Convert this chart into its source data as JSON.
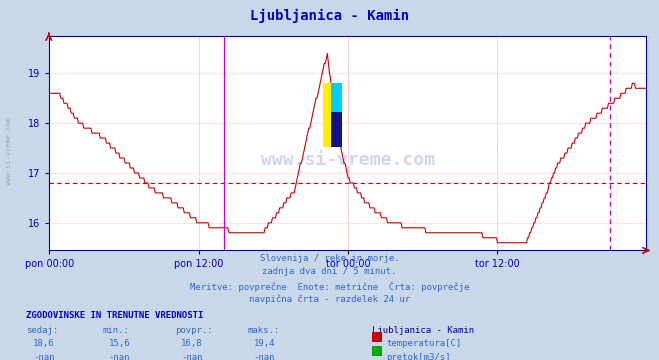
{
  "title": "Ljubljanica - Kamin",
  "title_color": "#0000cc",
  "bg_color": "#c8d8e8",
  "plot_bg_color": "#ffffff",
  "grid_color": "#ffcccc",
  "line_color": "#cc0000",
  "avg_line_color": "#cc0000",
  "avg_line_y": 16.8,
  "ylim": [
    15.45,
    19.75
  ],
  "yticks": [
    16,
    17,
    18,
    19
  ],
  "tick_color": "#0000cc",
  "xtick_labels": [
    "pon 00:00",
    "pon 12:00",
    "tor 00:00",
    "tor 12:00"
  ],
  "xtick_positions": [
    0,
    144,
    288,
    432
  ],
  "pink_vline_positions": [
    144,
    288,
    432
  ],
  "magenta_vline_pos": 168,
  "right_magenta_vline_pos": 540,
  "total_points": 576,
  "subtitle_lines": [
    "Slovenija / reke in morje.",
    "zadnja dva dni / 5 minut.",
    "Meritve: povprečne  Enote: metrične  Črta: povprečje",
    "navpična črta - razdelek 24 ur"
  ],
  "legend_title": "Ljubljanica - Kamin",
  "legend_label1": "temperatura[C]",
  "legend_label2": "pretok[m3/s]",
  "legend_color1": "#cc0000",
  "legend_color2": "#00aa00",
  "table_title": "ZGODOVINSKE IN TRENUTNE VREDNOSTI",
  "table_headers": [
    "sedaj:",
    "min.:",
    "povpr.:",
    "maks.:"
  ],
  "table_row1": [
    "18,6",
    "15,6",
    "16,8",
    "19,4"
  ],
  "table_row2": [
    "-nan",
    "-nan",
    "-nan",
    "-nan"
  ],
  "watermark_text": "www.si-vreme.com"
}
